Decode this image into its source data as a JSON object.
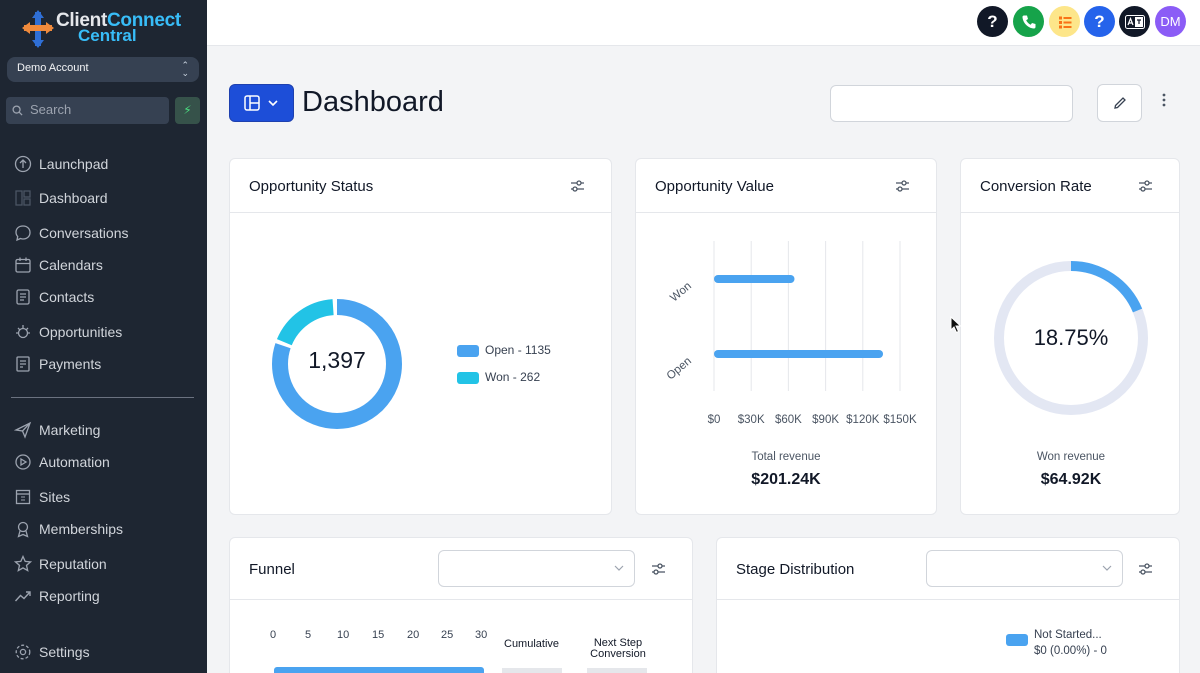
{
  "app": {
    "logo_line1a": "Client",
    "logo_line1b": "Connect",
    "logo_line2": "Central",
    "account": "Demo Account",
    "search_placeholder": "Search",
    "bolt": "⚡"
  },
  "sidebar": {
    "items": [
      {
        "label": "Launchpad",
        "icon": "rocket-icon"
      },
      {
        "label": "Dashboard",
        "icon": "dashboard-icon"
      },
      {
        "label": "Conversations",
        "icon": "chat-icon"
      },
      {
        "label": "Calendars",
        "icon": "calendar-icon"
      },
      {
        "label": "Contacts",
        "icon": "contacts-icon"
      },
      {
        "label": "Opportunities",
        "icon": "opportunities-icon"
      },
      {
        "label": "Payments",
        "icon": "payments-icon"
      },
      {
        "label": "Marketing",
        "icon": "send-icon"
      },
      {
        "label": "Automation",
        "icon": "automation-icon"
      },
      {
        "label": "Sites",
        "icon": "sites-icon"
      },
      {
        "label": "Memberships",
        "icon": "memberships-icon"
      },
      {
        "label": "Reputation",
        "icon": "star-icon"
      },
      {
        "label": "Reporting",
        "icon": "trend-icon"
      },
      {
        "label": "Settings",
        "icon": "gear-icon"
      }
    ]
  },
  "topbar": {
    "help_glyph": "?",
    "support_glyph": "?",
    "avatar_initials": "DM",
    "colors": {
      "dark": "#111827",
      "phone": "#16a34a",
      "list_bg": "#fde68a",
      "list_fg": "#f97316",
      "help": "#2563eb",
      "avatar": "#8b5cf6"
    }
  },
  "header": {
    "title": "Dashboard"
  },
  "opportunity_status": {
    "title": "Opportunity Status",
    "total": "1,397",
    "legend": [
      {
        "label": "Open - 1135",
        "color": "#4aa3f0"
      },
      {
        "label": "Won - 262",
        "color": "#22c3e6"
      }
    ],
    "values": {
      "open": 1135,
      "won": 262
    }
  },
  "opportunity_value": {
    "title": "Opportunity Value",
    "chart_data": {
      "type": "bar",
      "orientation": "horizontal",
      "categories": [
        "Won",
        "Open"
      ],
      "values": [
        64920,
        136320
      ],
      "xticks": [
        "$0",
        "$30K",
        "$60K",
        "$90K",
        "$120K",
        "$150K"
      ],
      "xlim": [
        0,
        150000
      ]
    },
    "footer_label": "Total revenue",
    "footer_value": "$201.24K"
  },
  "conversion_rate": {
    "title": "Conversion Rate",
    "value": "18.75%",
    "fraction": 0.1875,
    "footer_label": "Won revenue",
    "footer_value": "$64.92K"
  },
  "funnel": {
    "title": "Funnel",
    "ticks": [
      "0",
      "5",
      "10",
      "15",
      "20",
      "25",
      "30"
    ],
    "col1": "Cumulative",
    "col2a": "Next Step",
    "col2b": "Conversion"
  },
  "stage_distribution": {
    "title": "Stage Distribution",
    "legend_label": "Not Started...",
    "legend_value": "$0 (0.00%) - 0"
  }
}
